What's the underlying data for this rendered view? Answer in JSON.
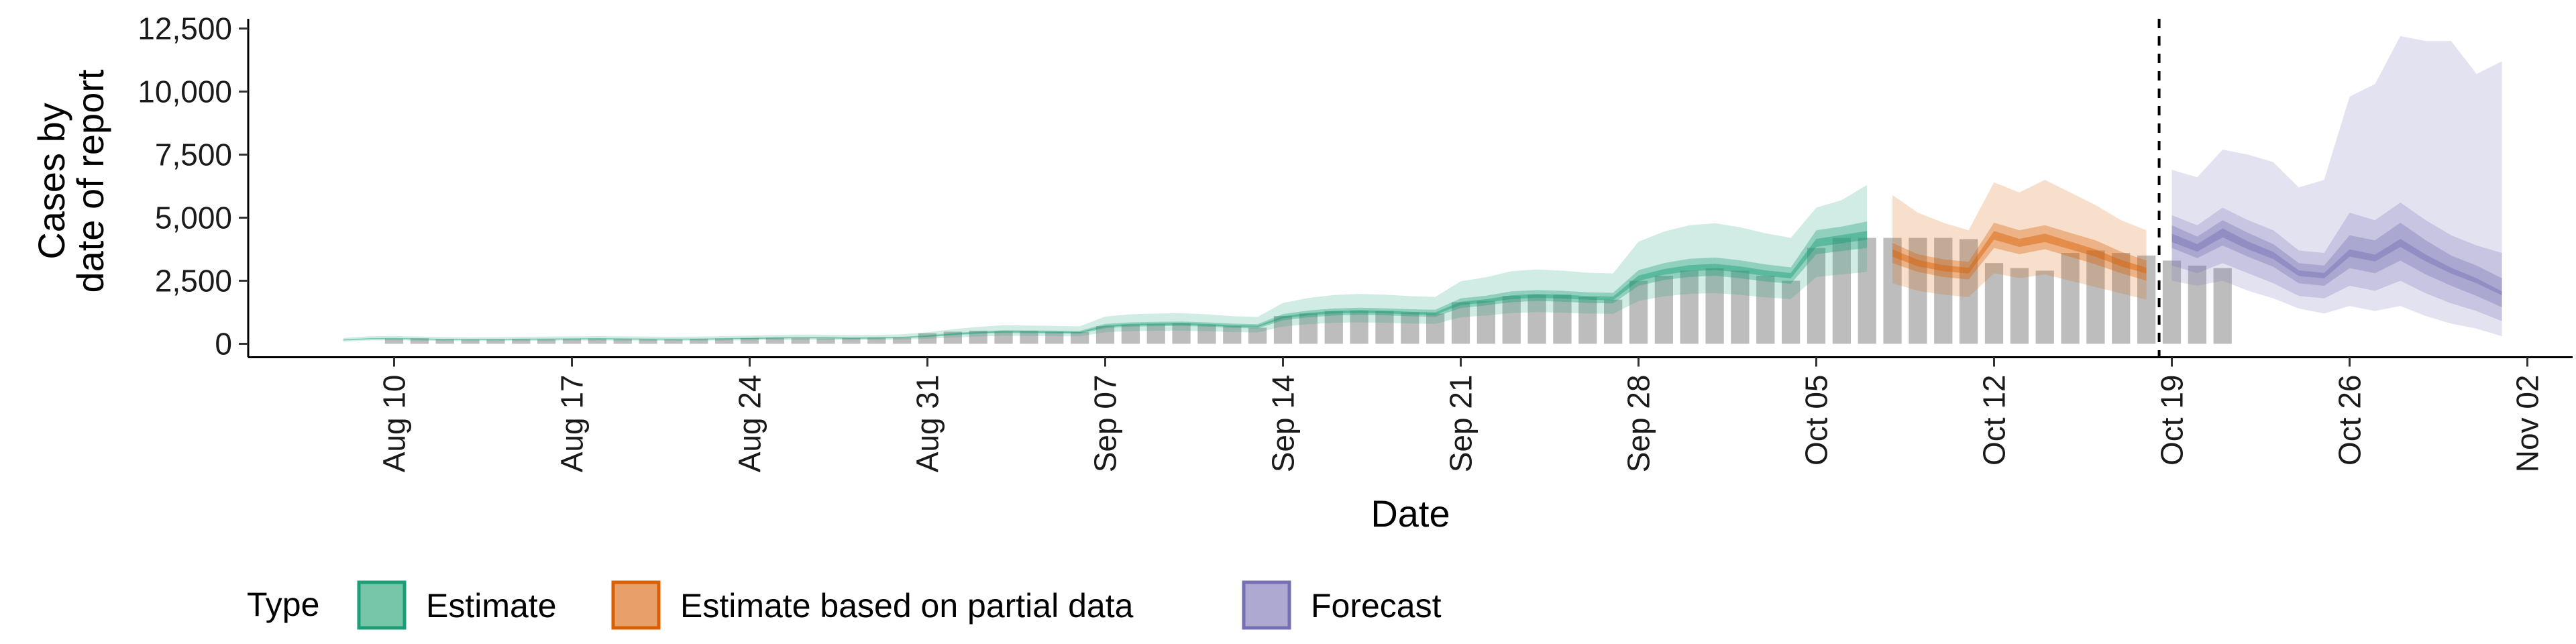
{
  "chart_data": {
    "type": "area",
    "xlabel": "Date",
    "ylabel": [
      "Cases by",
      "date of report"
    ],
    "ylim": [
      0,
      12500
    ],
    "y_ticks": [
      0,
      2500,
      5000,
      7500,
      10000,
      12500
    ],
    "y_tick_labels": [
      "0",
      "2,500",
      "5,000",
      "7,500",
      "10,000",
      "12,500"
    ],
    "x_range": [
      "2020-08-07",
      "2020-11-04"
    ],
    "x_ticks": [
      "2020-08-10",
      "2020-08-17",
      "2020-08-24",
      "2020-08-31",
      "2020-09-07",
      "2020-09-14",
      "2020-09-21",
      "2020-09-28",
      "2020-10-05",
      "2020-10-12",
      "2020-10-19",
      "2020-10-26",
      "2020-11-02"
    ],
    "x_tick_labels": [
      "Aug 10",
      "Aug 17",
      "Aug 24",
      "Aug 31",
      "Sep 07",
      "Sep 14",
      "Sep 21",
      "Sep 28",
      "Oct 05",
      "Oct 12",
      "Oct 19",
      "Oct 26",
      "Nov 02"
    ],
    "forecast_start_date": "2020-10-18",
    "reported_cases": {
      "start": "2020-08-10",
      "values": [
        200,
        220,
        180,
        160,
        170,
        190,
        180,
        200,
        210,
        190,
        180,
        170,
        200,
        210,
        230,
        240,
        220,
        210,
        230,
        250,
        240,
        420,
        480,
        520,
        500,
        510,
        480,
        470,
        700,
        760,
        780,
        820,
        760,
        700,
        640,
        1100,
        1200,
        1300,
        1320,
        1300,
        1250,
        1200,
        1650,
        1700,
        1900,
        1950,
        1950,
        1850,
        1750,
        2500,
        2700,
        2900,
        3000,
        2900,
        2700,
        2500,
        3800,
        4200,
        4200,
        4200,
        4200,
        4200,
        4150,
        3200,
        3000,
        2900,
        3600,
        3700,
        3600,
        3500,
        3300,
        3100,
        3000
      ]
    },
    "series": [
      {
        "name": "Estimate",
        "color": "#1b9e77",
        "dates": [
          "2020-08-08",
          "2020-08-09",
          "2020-08-10",
          "2020-08-11",
          "2020-08-12",
          "2020-08-13",
          "2020-08-14",
          "2020-08-15",
          "2020-08-16",
          "2020-08-17",
          "2020-08-18",
          "2020-08-19",
          "2020-08-20",
          "2020-08-21",
          "2020-08-22",
          "2020-08-23",
          "2020-08-24",
          "2020-08-25",
          "2020-08-26",
          "2020-08-27",
          "2020-08-28",
          "2020-08-29",
          "2020-08-30",
          "2020-08-31",
          "2020-09-01",
          "2020-09-02",
          "2020-09-03",
          "2020-09-04",
          "2020-09-05",
          "2020-09-06",
          "2020-09-07",
          "2020-09-08",
          "2020-09-09",
          "2020-09-10",
          "2020-09-11",
          "2020-09-12",
          "2020-09-13",
          "2020-09-14",
          "2020-09-15",
          "2020-09-16",
          "2020-09-17",
          "2020-09-18",
          "2020-09-19",
          "2020-09-20",
          "2020-09-21",
          "2020-09-22",
          "2020-09-23",
          "2020-09-24",
          "2020-09-25",
          "2020-09-26",
          "2020-09-27",
          "2020-09-28",
          "2020-09-29",
          "2020-09-30",
          "2020-10-01",
          "2020-10-02",
          "2020-10-03",
          "2020-10-04",
          "2020-10-05",
          "2020-10-06",
          "2020-10-07"
        ],
        "median": [
          150,
          200,
          210,
          190,
          170,
          165,
          170,
          180,
          185,
          195,
          200,
          195,
          185,
          180,
          185,
          200,
          215,
          230,
          240,
          235,
          225,
          230,
          250,
          300,
          380,
          440,
          480,
          470,
          460,
          450,
          700,
          760,
          780,
          790,
          760,
          710,
          690,
          1050,
          1180,
          1250,
          1280,
          1260,
          1220,
          1200,
          1600,
          1700,
          1850,
          1900,
          1870,
          1820,
          1800,
          2600,
          2850,
          3000,
          3050,
          2950,
          2800,
          2700,
          4000,
          4150,
          4300
        ],
        "inner": [
          [
            130,
            180,
            190,
            170,
            150,
            145,
            150,
            160,
            165,
            175,
            180,
            175,
            165,
            160,
            165,
            180,
            195,
            205,
            215,
            210,
            200,
            205,
            225,
            270,
            340,
            400,
            430,
            420,
            410,
            400,
            620,
            680,
            700,
            710,
            680,
            630,
            610,
            930,
            1050,
            1120,
            1150,
            1130,
            1090,
            1070,
            1420,
            1520,
            1650,
            1700,
            1670,
            1620,
            1600,
            2300,
            2530,
            2650,
            2700,
            2600,
            2470,
            2380,
            3550,
            3680,
            3800
          ],
          [
            170,
            225,
            235,
            215,
            195,
            190,
            195,
            205,
            210,
            220,
            225,
            220,
            210,
            205,
            210,
            225,
            240,
            260,
            270,
            265,
            255,
            260,
            280,
            340,
            430,
            490,
            540,
            530,
            520,
            510,
            790,
            850,
            870,
            880,
            850,
            800,
            780,
            1180,
            1320,
            1400,
            1430,
            1410,
            1370,
            1350,
            1800,
            1910,
            2080,
            2130,
            2100,
            2040,
            2020,
            2920,
            3200,
            3370,
            3420,
            3310,
            3150,
            3030,
            4500,
            4650,
            4850
          ]
        ],
        "outer": [
          [
            90,
            130,
            140,
            125,
            110,
            105,
            110,
            118,
            122,
            130,
            133,
            128,
            122,
            118,
            122,
            132,
            142,
            150,
            158,
            155,
            148,
            152,
            165,
            200,
            250,
            290,
            320,
            315,
            305,
            298,
            460,
            500,
            515,
            520,
            500,
            465,
            450,
            690,
            780,
            830,
            850,
            835,
            805,
            790,
            1050,
            1120,
            1220,
            1255,
            1235,
            1200,
            1185,
            1700,
            1880,
            1980,
            2010,
            1940,
            1840,
            1770,
            2650,
            2750,
            2850
          ],
          [
            230,
            300,
            315,
            290,
            265,
            255,
            262,
            278,
            285,
            298,
            305,
            298,
            285,
            278,
            285,
            305,
            328,
            350,
            365,
            358,
            345,
            350,
            380,
            460,
            580,
            670,
            740,
            725,
            710,
            695,
            1080,
            1170,
            1200,
            1215,
            1170,
            1095,
            1065,
            1620,
            1820,
            1930,
            1980,
            1950,
            1890,
            1860,
            2480,
            2640,
            2880,
            2950,
            2900,
            2820,
            2790,
            4050,
            4450,
            4700,
            4780,
            4620,
            4380,
            4200,
            5400,
            5700,
            6300
          ]
        ]
      },
      {
        "name": "Estimate based on partial data",
        "color": "#d95f02",
        "dates": [
          "2020-10-08",
          "2020-10-09",
          "2020-10-10",
          "2020-10-11",
          "2020-10-12",
          "2020-10-13",
          "2020-10-14",
          "2020-10-15",
          "2020-10-16",
          "2020-10-17",
          "2020-10-18"
        ],
        "median": [
          3600,
          3200,
          3000,
          2900,
          4300,
          4000,
          4200,
          3900,
          3600,
          3200,
          2900
        ],
        "inner": [
          [
            3200,
            2850,
            2650,
            2550,
            3800,
            3550,
            3750,
            3450,
            3150,
            2800,
            2500
          ],
          [
            4000,
            3550,
            3350,
            3250,
            4800,
            4500,
            4700,
            4400,
            4100,
            3650,
            3300
          ]
        ],
        "outer": [
          [
            2400,
            2100,
            1950,
            1850,
            2800,
            2600,
            2750,
            2500,
            2250,
            2000,
            1750
          ],
          [
            5900,
            5200,
            4800,
            4500,
            6400,
            6000,
            6500,
            6000,
            5500,
            4900,
            4500
          ]
        ]
      },
      {
        "name": "Forecast",
        "color": "#7570b3",
        "dates": [
          "2020-10-19",
          "2020-10-20",
          "2020-10-21",
          "2020-10-22",
          "2020-10-23",
          "2020-10-24",
          "2020-10-25",
          "2020-10-26",
          "2020-10-27",
          "2020-10-28",
          "2020-10-29",
          "2020-10-30",
          "2020-10-31",
          "2020-11-01"
        ],
        "median": [
          4200,
          3800,
          4400,
          3900,
          3500,
          2800,
          2700,
          3600,
          3400,
          4000,
          3400,
          2900,
          2500,
          2000
        ],
        "inner": [
          [
            3800,
            3400,
            3900,
            3450,
            3050,
            2400,
            2300,
            3000,
            2800,
            3300,
            2750,
            2300,
            1900,
            1450
          ],
          [
            4700,
            4250,
            4900,
            4400,
            3950,
            3200,
            3100,
            4300,
            4100,
            4800,
            4100,
            3500,
            3100,
            2600
          ]
        ],
        "mid": [
          [
            3100,
            2800,
            3200,
            2800,
            2400,
            1900,
            1800,
            2300,
            2100,
            2500,
            2000,
            1600,
            1300,
            900
          ],
          [
            5100,
            4700,
            5400,
            4900,
            4500,
            3700,
            3600,
            5200,
            4900,
            5600,
            4900,
            4300,
            3900,
            3600
          ]
        ],
        "outer": [
          [
            2500,
            2300,
            2500,
            2100,
            1800,
            1400,
            1200,
            1500,
            1300,
            1500,
            1100,
            800,
            600,
            300
          ],
          [
            6900,
            6600,
            7700,
            7500,
            7200,
            6200,
            6500,
            9800,
            10300,
            12200,
            12000,
            12000,
            10700,
            11200
          ]
        ]
      }
    ],
    "legend": {
      "title": "Type",
      "position": "bottom",
      "entries": [
        {
          "label": "Estimate",
          "fill": "#78c6aa",
          "stroke": "#1b9e77"
        },
        {
          "label": "Estimate based on partial data",
          "fill": "#e8a06a",
          "stroke": "#d95f02"
        },
        {
          "label": "Forecast",
          "fill": "#ada9d1",
          "stroke": "#7570b3"
        }
      ]
    },
    "grid": false
  }
}
